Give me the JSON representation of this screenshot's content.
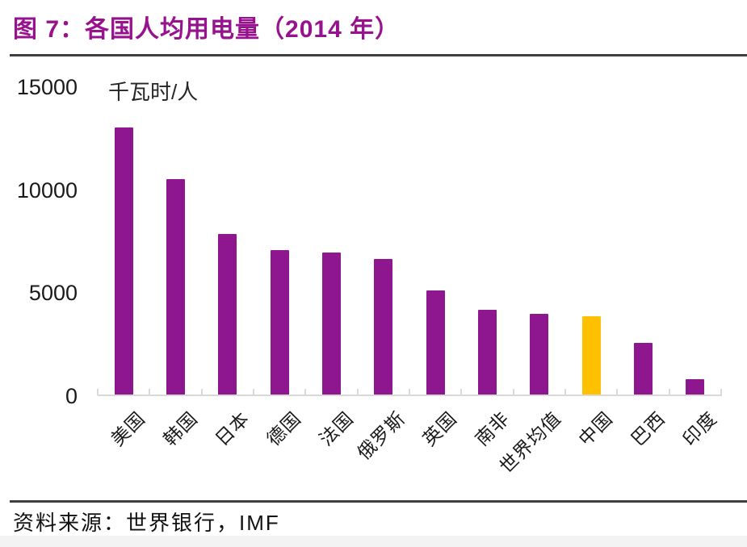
{
  "header": {
    "title": "图 7：各国人均用电量（2014 年）"
  },
  "footer": {
    "source": "资料来源：世界银行，IMF"
  },
  "chart_data": {
    "type": "bar",
    "title": "各国人均用电量（2014 年）",
    "unit_label": "千瓦时/人",
    "xlabel": "",
    "ylabel": "千瓦时/人",
    "categories": [
      "美国",
      "韩国",
      "日本",
      "德国",
      "法国",
      "俄罗斯",
      "英国",
      "南非",
      "世界均值",
      "中国",
      "巴西",
      "印度"
    ],
    "values": [
      13000,
      10500,
      7850,
      7050,
      6950,
      6600,
      5100,
      4150,
      3950,
      3850,
      2550,
      800
    ],
    "ylim": [
      0,
      15000
    ],
    "yticks": [
      15000,
      10000,
      5000,
      0
    ],
    "grid": false,
    "legend_position": "none",
    "highlight_category": "中国"
  },
  "colors": {
    "bar": "#8E168E",
    "highlight_bar": "#FFC000",
    "title_text": "#97128D",
    "divider": "#3F3F3F",
    "axis_line": "#D9D9D9",
    "label_text": "#1A1A1A",
    "footer_strip": "#F3F3F3"
  }
}
